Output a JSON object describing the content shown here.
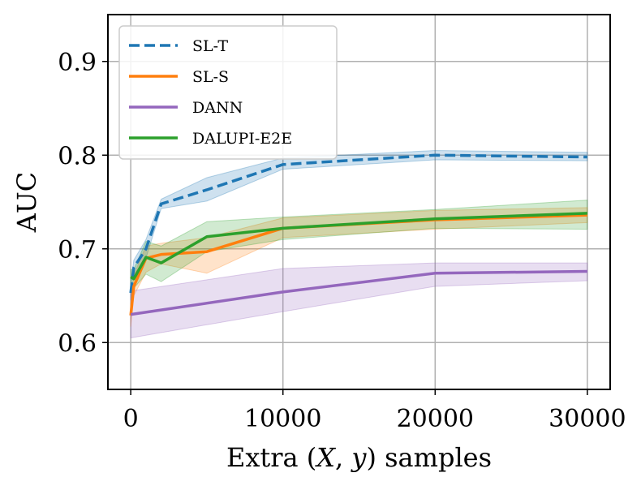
{
  "chart_data": {
    "type": "line",
    "title": "",
    "xlabel": "Extra (X, y) samples",
    "ylabel": "AUC",
    "xlim": [
      -1500,
      31500
    ],
    "ylim": [
      0.55,
      0.95
    ],
    "xticks": [
      0,
      10000,
      20000,
      30000
    ],
    "xtick_labels": [
      "0",
      "10000",
      "20000",
      "30000"
    ],
    "yticks": [
      0.6,
      0.7,
      0.8,
      0.9
    ],
    "ytick_labels": [
      "0.6",
      "0.7",
      "0.8",
      "0.9"
    ],
    "grid": true,
    "legend_position": "top-left",
    "series": [
      {
        "name": "SL-T",
        "color": "#1f77b4",
        "dashed": true,
        "x": [
          0,
          200,
          1000,
          2000,
          5000,
          10000,
          20000,
          30000
        ],
        "values": [
          0.653,
          0.68,
          0.7,
          0.748,
          0.763,
          0.79,
          0.8,
          0.798
        ],
        "lower": [
          0.645,
          0.672,
          0.69,
          0.743,
          0.751,
          0.785,
          0.795,
          0.794
        ],
        "upper": [
          0.662,
          0.688,
          0.71,
          0.753,
          0.776,
          0.797,
          0.805,
          0.803
        ]
      },
      {
        "name": "SL-S",
        "color": "#ff7f0e",
        "dashed": false,
        "x": [
          0,
          200,
          1000,
          2000,
          5000,
          10000,
          20000,
          30000
        ],
        "values": [
          0.629,
          0.66,
          0.69,
          0.694,
          0.697,
          0.722,
          0.731,
          0.736
        ],
        "lower": [
          0.617,
          0.65,
          0.675,
          0.684,
          0.674,
          0.712,
          0.721,
          0.728
        ],
        "upper": [
          0.641,
          0.672,
          0.703,
          0.706,
          0.712,
          0.733,
          0.741,
          0.744
        ]
      },
      {
        "name": "DANN",
        "color": "#9467bd",
        "dashed": false,
        "x": [
          0,
          10000,
          20000,
          30000
        ],
        "values": [
          0.63,
          0.654,
          0.674,
          0.676
        ],
        "lower": [
          0.605,
          0.633,
          0.66,
          0.666
        ],
        "upper": [
          0.655,
          0.679,
          0.685,
          0.685
        ]
      },
      {
        "name": "DALUPI-E2E",
        "color": "#2ca02c",
        "dashed": false,
        "x": [
          0,
          200,
          1000,
          2000,
          5000,
          10000,
          20000,
          30000
        ],
        "values": [
          0.67,
          0.668,
          0.691,
          0.685,
          0.713,
          0.722,
          0.732,
          0.738
        ],
        "lower": [
          0.662,
          0.658,
          0.673,
          0.665,
          0.697,
          0.71,
          0.722,
          0.721
        ],
        "upper": [
          0.678,
          0.678,
          0.708,
          0.703,
          0.729,
          0.734,
          0.742,
          0.752
        ]
      }
    ]
  }
}
